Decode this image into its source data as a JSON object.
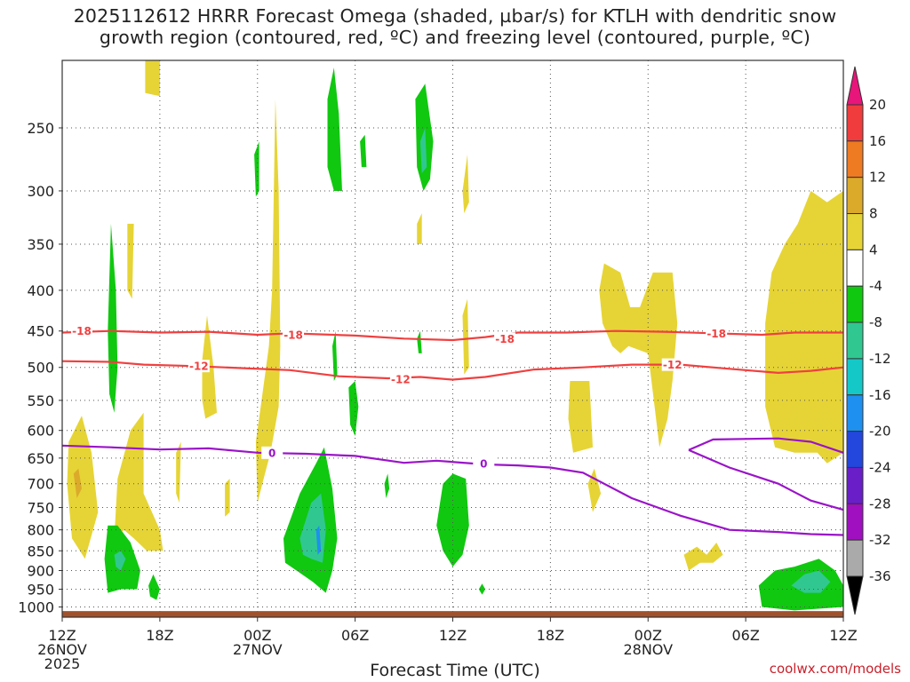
{
  "title_line1": "2025112612 HRRR Forecast Omega (shaded, µbar/s) for KTLH with dendritic snow",
  "title_line2": "growth region (contoured, red, ºC) and freezing level (contoured, purple, ºC)",
  "credit": "coolwx.com/models",
  "chart_data": {
    "type": "time-height contour",
    "xlabel": "Forecast Time (UTC)",
    "ylabel": "",
    "ylim": [
      1030,
      200
    ],
    "y_ticks": [
      250,
      300,
      350,
      400,
      450,
      500,
      550,
      600,
      650,
      700,
      750,
      800,
      850,
      900,
      950,
      1000
    ],
    "x_range_hours": [
      0,
      48
    ],
    "x_ticks": [
      {
        "hour": 0,
        "label": "12Z",
        "date": "26NOV",
        "year": "2025"
      },
      {
        "hour": 6,
        "label": "18Z",
        "date": "",
        "year": ""
      },
      {
        "hour": 12,
        "label": "00Z",
        "date": "27NOV",
        "year": ""
      },
      {
        "hour": 18,
        "label": "06Z",
        "date": "",
        "year": ""
      },
      {
        "hour": 24,
        "label": "12Z",
        "date": "",
        "year": ""
      },
      {
        "hour": 30,
        "label": "18Z",
        "date": "",
        "year": ""
      },
      {
        "hour": 36,
        "label": "00Z",
        "date": "28NOV",
        "year": ""
      },
      {
        "hour": 42,
        "label": "06Z",
        "date": "",
        "year": ""
      },
      {
        "hour": 48,
        "label": "12Z",
        "date": "",
        "year": ""
      }
    ],
    "colorbar": {
      "labels": [
        "20",
        "16",
        "12",
        "8",
        "4",
        "-4",
        "-8",
        "-12",
        "-16",
        "-20",
        "-24",
        "-28",
        "-32",
        "-36"
      ],
      "colors": [
        "#e8157a",
        "#f03c3c",
        "#ee7a22",
        "#dcaa2a",
        "#e6d436",
        "#ffffff",
        "#10c810",
        "#30c890",
        "#14c8c8",
        "#1e90f0",
        "#2346dc",
        "#6a1ec8",
        "#a010c0",
        "#aaaaaa",
        "#000000"
      ]
    },
    "contours": [
      {
        "name": "-18",
        "color": "#f04040",
        "points": [
          [
            0,
            452
          ],
          [
            3,
            450
          ],
          [
            6,
            452
          ],
          [
            9,
            451
          ],
          [
            12,
            455
          ],
          [
            14,
            453
          ],
          [
            18,
            456
          ],
          [
            21,
            460
          ],
          [
            24,
            462
          ],
          [
            26,
            458
          ],
          [
            28,
            452
          ],
          [
            31,
            452
          ],
          [
            34,
            450
          ],
          [
            37,
            451
          ],
          [
            40,
            453
          ],
          [
            43,
            455
          ],
          [
            45,
            452
          ],
          [
            48,
            452
          ]
        ],
        "labels": [
          [
            1.2,
            450
          ],
          [
            14.2,
            455
          ],
          [
            27.2,
            460
          ],
          [
            40.2,
            453
          ]
        ]
      },
      {
        "name": "-12",
        "color": "#f04040",
        "points": [
          [
            0,
            491
          ],
          [
            3,
            492
          ],
          [
            5,
            496
          ],
          [
            8,
            498
          ],
          [
            11,
            501
          ],
          [
            14,
            504
          ],
          [
            17,
            513
          ],
          [
            20,
            516
          ],
          [
            22,
            514
          ],
          [
            24,
            518
          ],
          [
            26,
            514
          ],
          [
            29,
            503
          ],
          [
            32,
            500
          ],
          [
            35,
            496
          ],
          [
            38,
            496
          ],
          [
            41,
            502
          ],
          [
            44,
            508
          ],
          [
            46,
            505
          ],
          [
            48,
            500
          ]
        ],
        "labels": [
          [
            8.4,
            498
          ],
          [
            20.8,
            517
          ],
          [
            37.5,
            496
          ]
        ]
      },
      {
        "name": "0",
        "color": "#9a14c8",
        "points": [
          [
            0,
            627
          ],
          [
            3,
            630
          ],
          [
            6,
            634
          ],
          [
            9,
            632
          ],
          [
            12,
            640
          ],
          [
            15,
            642
          ],
          [
            18,
            646
          ],
          [
            21,
            659
          ],
          [
            23,
            655
          ],
          [
            26,
            662
          ],
          [
            28,
            664
          ],
          [
            30,
            668
          ],
          [
            32,
            678
          ],
          [
            35,
            730
          ],
          [
            38,
            768
          ],
          [
            41,
            800
          ],
          [
            44,
            805
          ],
          [
            46,
            810
          ],
          [
            48,
            812
          ]
        ],
        "labels": [
          [
            12.9,
            640
          ],
          [
            25.9,
            660
          ]
        ]
      },
      {
        "name": "0",
        "color": "#9a14c8",
        "points": [
          [
            38.5,
            635
          ],
          [
            40,
            616
          ],
          [
            44,
            614
          ],
          [
            46,
            620
          ],
          [
            48,
            640
          ]
        ],
        "labels": []
      },
      {
        "name": "0",
        "color": "#9a14c8",
        "points": [
          [
            38.5,
            635
          ],
          [
            41,
            668
          ],
          [
            44,
            700
          ],
          [
            46,
            735
          ],
          [
            48,
            755
          ]
        ],
        "labels": []
      }
    ]
  }
}
